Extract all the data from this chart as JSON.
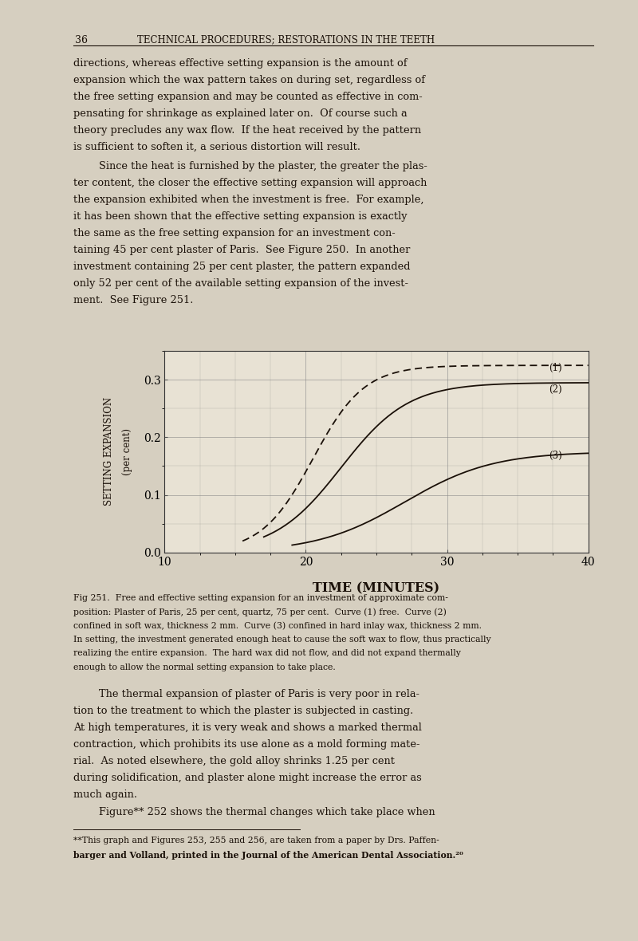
{
  "page_bg": "#d6cfc0",
  "text_color": "#1a1008",
  "page_number": "36",
  "header_text": "TECHNICAL PROCEDURES; RESTORATIONS IN THE TEETH",
  "xlabel": "TIME (MINUTES)",
  "ylabel_line1": "SETTING EXPANSION",
  "ylabel_line2": "(per cent)",
  "xlim": [
    10,
    40
  ],
  "ylim": [
    0.0,
    0.35
  ],
  "xticks": [
    10,
    20,
    30,
    40
  ],
  "yticks": [
    0.0,
    0.1,
    0.2,
    0.3
  ],
  "grid_color": "#888888",
  "curve1_label": "(1)",
  "curve2_label": "(2)",
  "curve3_label": "(3)",
  "chart_bg": "#e8e2d4",
  "p1_lines": [
    "directions, whereas effective setting expansion is the amount of",
    "expansion which the wax pattern takes on during set, regardless of",
    "the free setting expansion and may be counted as effective in com-",
    "pensating for shrinkage as explained later on.  Of course such a",
    "theory precludes any wax flow.  If the heat received by the pattern",
    "is sufficient to soften it, a serious distortion will result."
  ],
  "p2_lines": [
    "Since the heat is furnished by the plaster, the greater the plas-",
    "ter content, the closer the effective setting expansion will approach",
    "the expansion exhibited when the investment is free.  For example,",
    "it has been shown that the effective setting expansion is exactly",
    "the same as the free setting expansion for an investment con-",
    "taining 45 per cent plaster of Paris.  See Figure 250.  In another",
    "investment containing 25 per cent plaster, the pattern expanded",
    "only 52 per cent of the available setting expansion of the invest-",
    "ment.  See Figure 251."
  ],
  "caption_lines": [
    "Fig 251.  Free and effective setting expansion for an investment of approximate com-",
    "position: Plaster of Paris, 25 per cent, quartz, 75 per cent.  Curve (1) free.  Curve (2)",
    "confined in soft wax, thickness 2 mm.  Curve (3) confined in hard inlay wax, thickness 2 mm.",
    "In setting, the investment generated enough heat to cause the soft wax to flow, thus practically",
    "realizing the entire expansion.  The hard wax did not flow, and did not expand thermally",
    "enough to allow the normal setting expansion to take place."
  ],
  "p3_lines": [
    "The thermal expansion of plaster of Paris is very poor in rela-",
    "tion to the treatment to which the plaster is subjected in casting.",
    "At high temperatures, it is very weak and shows a marked thermal",
    "contraction, which prohibits its use alone as a mold forming mate-",
    "rial.  As noted elsewhere, the gold alloy shrinks 1.25 per cent",
    "during solidification, and plaster alone might increase the error as",
    "much again."
  ],
  "p4_line": "Figure** 252 shows the thermal changes which take place when",
  "footnote_lines": [
    "**This graph and Figures 253, 255 and 256, are taken from a paper by Drs. Paffen-",
    "barger and Volland, printed in the Journal of the American Dental Association.²⁰"
  ]
}
